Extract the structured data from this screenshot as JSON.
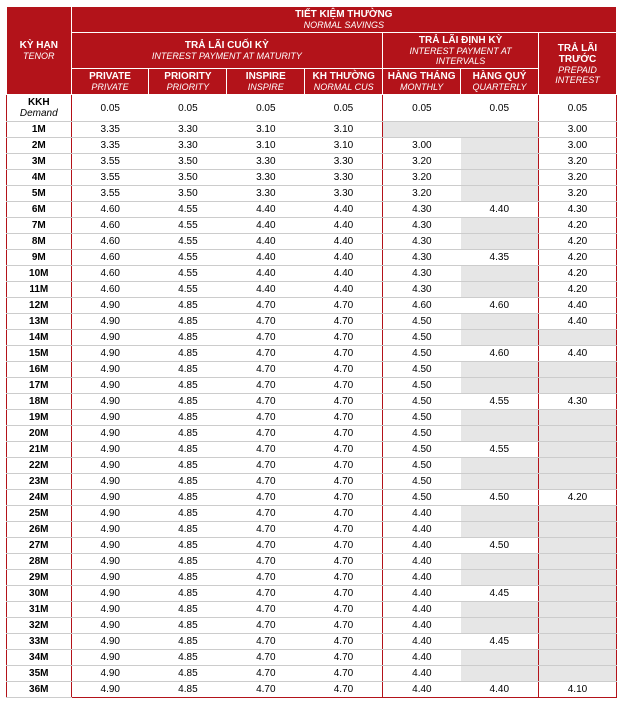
{
  "colors": {
    "header_bg": "#b3131a",
    "header_fg": "#ffffff",
    "na_bg": "#e6e6e6",
    "row_border": "#cccccc"
  },
  "header": {
    "tenor": {
      "vi": "KỲ HẠN",
      "en": "TENOR"
    },
    "savings": {
      "vi": "TIẾT KIỆM THƯỜNG",
      "en": "NORMAL SAVINGS"
    },
    "maturity": {
      "vi": "TRẢ LÃI CUỐI KỲ",
      "en": "INTEREST PAYMENT AT MATURITY"
    },
    "intervals": {
      "vi": "TRẢ LÃI ĐỊNH KỲ",
      "en": "INTEREST PAYMENT AT INTERVALS"
    },
    "prepaid": {
      "vi": "TRẢ LÃI TRƯỚC",
      "en": "PREPAID INTEREST"
    },
    "cols": {
      "private": {
        "vi": "PRIVATE",
        "en": "PRIVATE"
      },
      "priority": {
        "vi": "PRIORITY",
        "en": "PRIORITY"
      },
      "inspire": {
        "vi": "INSPIRE",
        "en": "INSPIRE"
      },
      "normal": {
        "vi": "KH THƯỜNG",
        "en": "NORMAL CUS"
      },
      "monthly": {
        "vi": "HÀNG THÁNG",
        "en": "MONTHLY"
      },
      "quarterly": {
        "vi": "HÀNG QUÝ",
        "en": "QUARTERLY"
      }
    }
  },
  "rows": [
    {
      "tenor": "KKH",
      "tenor_sub": "Demand",
      "v": [
        "0.05",
        "0.05",
        "0.05",
        "0.05",
        "0.05",
        "0.05",
        "0.05"
      ]
    },
    {
      "tenor": "1M",
      "v": [
        "3.35",
        "3.30",
        "3.10",
        "3.10",
        "",
        "",
        "3.00"
      ]
    },
    {
      "tenor": "2M",
      "v": [
        "3.35",
        "3.30",
        "3.10",
        "3.10",
        "3.00",
        "",
        "3.00"
      ]
    },
    {
      "tenor": "3M",
      "v": [
        "3.55",
        "3.50",
        "3.30",
        "3.30",
        "3.20",
        "",
        "3.20"
      ]
    },
    {
      "tenor": "4M",
      "v": [
        "3.55",
        "3.50",
        "3.30",
        "3.30",
        "3.20",
        "",
        "3.20"
      ]
    },
    {
      "tenor": "5M",
      "v": [
        "3.55",
        "3.50",
        "3.30",
        "3.30",
        "3.20",
        "",
        "3.20"
      ]
    },
    {
      "tenor": "6M",
      "v": [
        "4.60",
        "4.55",
        "4.40",
        "4.40",
        "4.30",
        "4.40",
        "4.30"
      ]
    },
    {
      "tenor": "7M",
      "v": [
        "4.60",
        "4.55",
        "4.40",
        "4.40",
        "4.30",
        "",
        "4.20"
      ]
    },
    {
      "tenor": "8M",
      "v": [
        "4.60",
        "4.55",
        "4.40",
        "4.40",
        "4.30",
        "",
        "4.20"
      ]
    },
    {
      "tenor": "9M",
      "v": [
        "4.60",
        "4.55",
        "4.40",
        "4.40",
        "4.30",
        "4.35",
        "4.20"
      ]
    },
    {
      "tenor": "10M",
      "v": [
        "4.60",
        "4.55",
        "4.40",
        "4.40",
        "4.30",
        "",
        "4.20"
      ]
    },
    {
      "tenor": "11M",
      "v": [
        "4.60",
        "4.55",
        "4.40",
        "4.40",
        "4.30",
        "",
        "4.20"
      ]
    },
    {
      "tenor": "12M",
      "v": [
        "4.90",
        "4.85",
        "4.70",
        "4.70",
        "4.60",
        "4.60",
        "4.40"
      ]
    },
    {
      "tenor": "13M",
      "v": [
        "4.90",
        "4.85",
        "4.70",
        "4.70",
        "4.50",
        "",
        "4.40"
      ]
    },
    {
      "tenor": "14M",
      "v": [
        "4.90",
        "4.85",
        "4.70",
        "4.70",
        "4.50",
        "",
        ""
      ]
    },
    {
      "tenor": "15M",
      "v": [
        "4.90",
        "4.85",
        "4.70",
        "4.70",
        "4.50",
        "4.60",
        "4.40"
      ]
    },
    {
      "tenor": "16M",
      "v": [
        "4.90",
        "4.85",
        "4.70",
        "4.70",
        "4.50",
        "",
        ""
      ]
    },
    {
      "tenor": "17M",
      "v": [
        "4.90",
        "4.85",
        "4.70",
        "4.70",
        "4.50",
        "",
        ""
      ]
    },
    {
      "tenor": "18M",
      "v": [
        "4.90",
        "4.85",
        "4.70",
        "4.70",
        "4.50",
        "4.55",
        "4.30"
      ]
    },
    {
      "tenor": "19M",
      "v": [
        "4.90",
        "4.85",
        "4.70",
        "4.70",
        "4.50",
        "",
        ""
      ]
    },
    {
      "tenor": "20M",
      "v": [
        "4.90",
        "4.85",
        "4.70",
        "4.70",
        "4.50",
        "",
        ""
      ]
    },
    {
      "tenor": "21M",
      "v": [
        "4.90",
        "4.85",
        "4.70",
        "4.70",
        "4.50",
        "4.55",
        ""
      ]
    },
    {
      "tenor": "22M",
      "v": [
        "4.90",
        "4.85",
        "4.70",
        "4.70",
        "4.50",
        "",
        ""
      ]
    },
    {
      "tenor": "23M",
      "v": [
        "4.90",
        "4.85",
        "4.70",
        "4.70",
        "4.50",
        "",
        ""
      ]
    },
    {
      "tenor": "24M",
      "v": [
        "4.90",
        "4.85",
        "4.70",
        "4.70",
        "4.50",
        "4.50",
        "4.20"
      ]
    },
    {
      "tenor": "25M",
      "v": [
        "4.90",
        "4.85",
        "4.70",
        "4.70",
        "4.40",
        "",
        ""
      ]
    },
    {
      "tenor": "26M",
      "v": [
        "4.90",
        "4.85",
        "4.70",
        "4.70",
        "4.40",
        "",
        ""
      ]
    },
    {
      "tenor": "27M",
      "v": [
        "4.90",
        "4.85",
        "4.70",
        "4.70",
        "4.40",
        "4.50",
        ""
      ]
    },
    {
      "tenor": "28M",
      "v": [
        "4.90",
        "4.85",
        "4.70",
        "4.70",
        "4.40",
        "",
        ""
      ]
    },
    {
      "tenor": "29M",
      "v": [
        "4.90",
        "4.85",
        "4.70",
        "4.70",
        "4.40",
        "",
        ""
      ]
    },
    {
      "tenor": "30M",
      "v": [
        "4.90",
        "4.85",
        "4.70",
        "4.70",
        "4.40",
        "4.45",
        ""
      ]
    },
    {
      "tenor": "31M",
      "v": [
        "4.90",
        "4.85",
        "4.70",
        "4.70",
        "4.40",
        "",
        ""
      ]
    },
    {
      "tenor": "32M",
      "v": [
        "4.90",
        "4.85",
        "4.70",
        "4.70",
        "4.40",
        "",
        ""
      ]
    },
    {
      "tenor": "33M",
      "v": [
        "4.90",
        "4.85",
        "4.70",
        "4.70",
        "4.40",
        "4.45",
        ""
      ]
    },
    {
      "tenor": "34M",
      "v": [
        "4.90",
        "4.85",
        "4.70",
        "4.70",
        "4.40",
        "",
        ""
      ]
    },
    {
      "tenor": "35M",
      "v": [
        "4.90",
        "4.85",
        "4.70",
        "4.70",
        "4.40",
        "",
        ""
      ]
    },
    {
      "tenor": "36M",
      "v": [
        "4.90",
        "4.85",
        "4.70",
        "4.70",
        "4.40",
        "4.40",
        "4.10"
      ]
    }
  ]
}
